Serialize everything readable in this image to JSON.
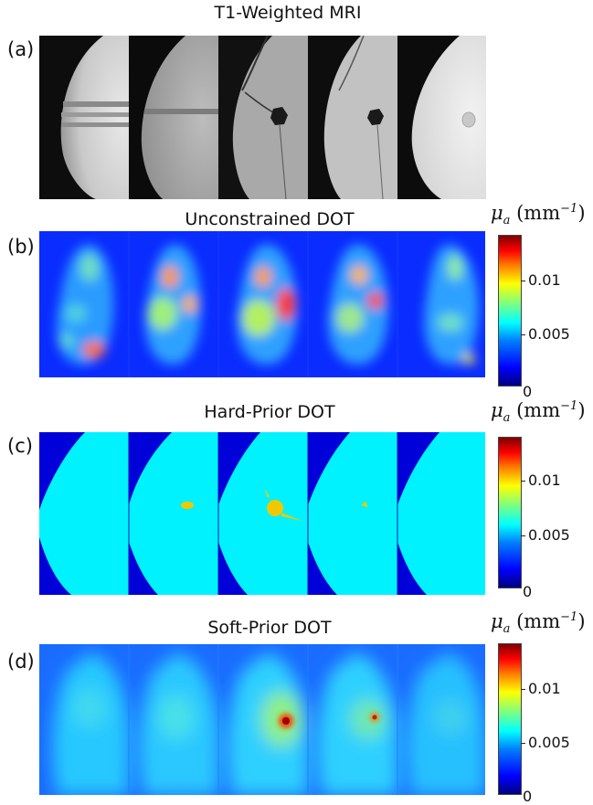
{
  "panels": {
    "a": {
      "label": "(a)",
      "title": "T1-Weighted MRI"
    },
    "b": {
      "label": "(b)",
      "title": "Unconstrained DOT"
    },
    "c": {
      "label": "(c)",
      "title": "Hard-Prior DOT"
    },
    "d": {
      "label": "(d)",
      "title": "Soft-Prior DOT"
    }
  },
  "colorbar": {
    "unit_symbol": "μ",
    "unit_sub": "a",
    "unit_open": "(mm",
    "unit_sup": "−1",
    "unit_close": ")",
    "ticks": [
      "0.01",
      "0.005",
      "0"
    ]
  }
}
